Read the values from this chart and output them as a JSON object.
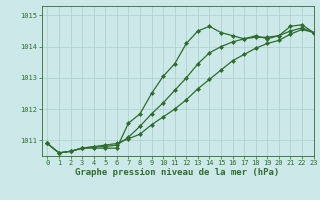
{
  "xlabel": "Graphe pression niveau de la mer (hPa)",
  "xlim": [
    -0.5,
    23
  ],
  "ylim": [
    1010.5,
    1015.3
  ],
  "yticks": [
    1011,
    1012,
    1013,
    1014,
    1015
  ],
  "xticks": [
    0,
    1,
    2,
    3,
    4,
    5,
    6,
    7,
    8,
    9,
    10,
    11,
    12,
    13,
    14,
    15,
    16,
    17,
    18,
    19,
    20,
    21,
    22,
    23
  ],
  "bg_color": "#cce8e8",
  "grid_color": "#aacece",
  "line_color": "#2d6e2d",
  "line1": [
    1010.9,
    1010.6,
    1010.65,
    1010.75,
    1010.75,
    1010.75,
    1010.75,
    1011.55,
    1011.85,
    1012.5,
    1013.05,
    1013.45,
    1014.1,
    1014.5,
    1014.65,
    1014.45,
    1014.35,
    1014.25,
    1014.35,
    1014.25,
    1014.35,
    1014.65,
    1014.7,
    1014.45
  ],
  "line2": [
    1010.9,
    1010.6,
    1010.65,
    1010.75,
    1010.8,
    1010.8,
    1010.85,
    1011.1,
    1011.45,
    1011.85,
    1012.2,
    1012.6,
    1013.0,
    1013.45,
    1013.8,
    1014.0,
    1014.15,
    1014.25,
    1014.3,
    1014.3,
    1014.35,
    1014.5,
    1014.6,
    1014.45
  ],
  "line3": [
    1010.9,
    1010.6,
    1010.65,
    1010.75,
    1010.8,
    1010.85,
    1010.9,
    1011.05,
    1011.2,
    1011.5,
    1011.75,
    1012.0,
    1012.3,
    1012.65,
    1012.95,
    1013.25,
    1013.55,
    1013.75,
    1013.95,
    1014.1,
    1014.2,
    1014.4,
    1014.55,
    1014.45
  ],
  "marker": "D",
  "marker_size": 2.0,
  "line_width": 0.9,
  "tick_fontsize": 5.0,
  "xlabel_fontsize": 6.5
}
